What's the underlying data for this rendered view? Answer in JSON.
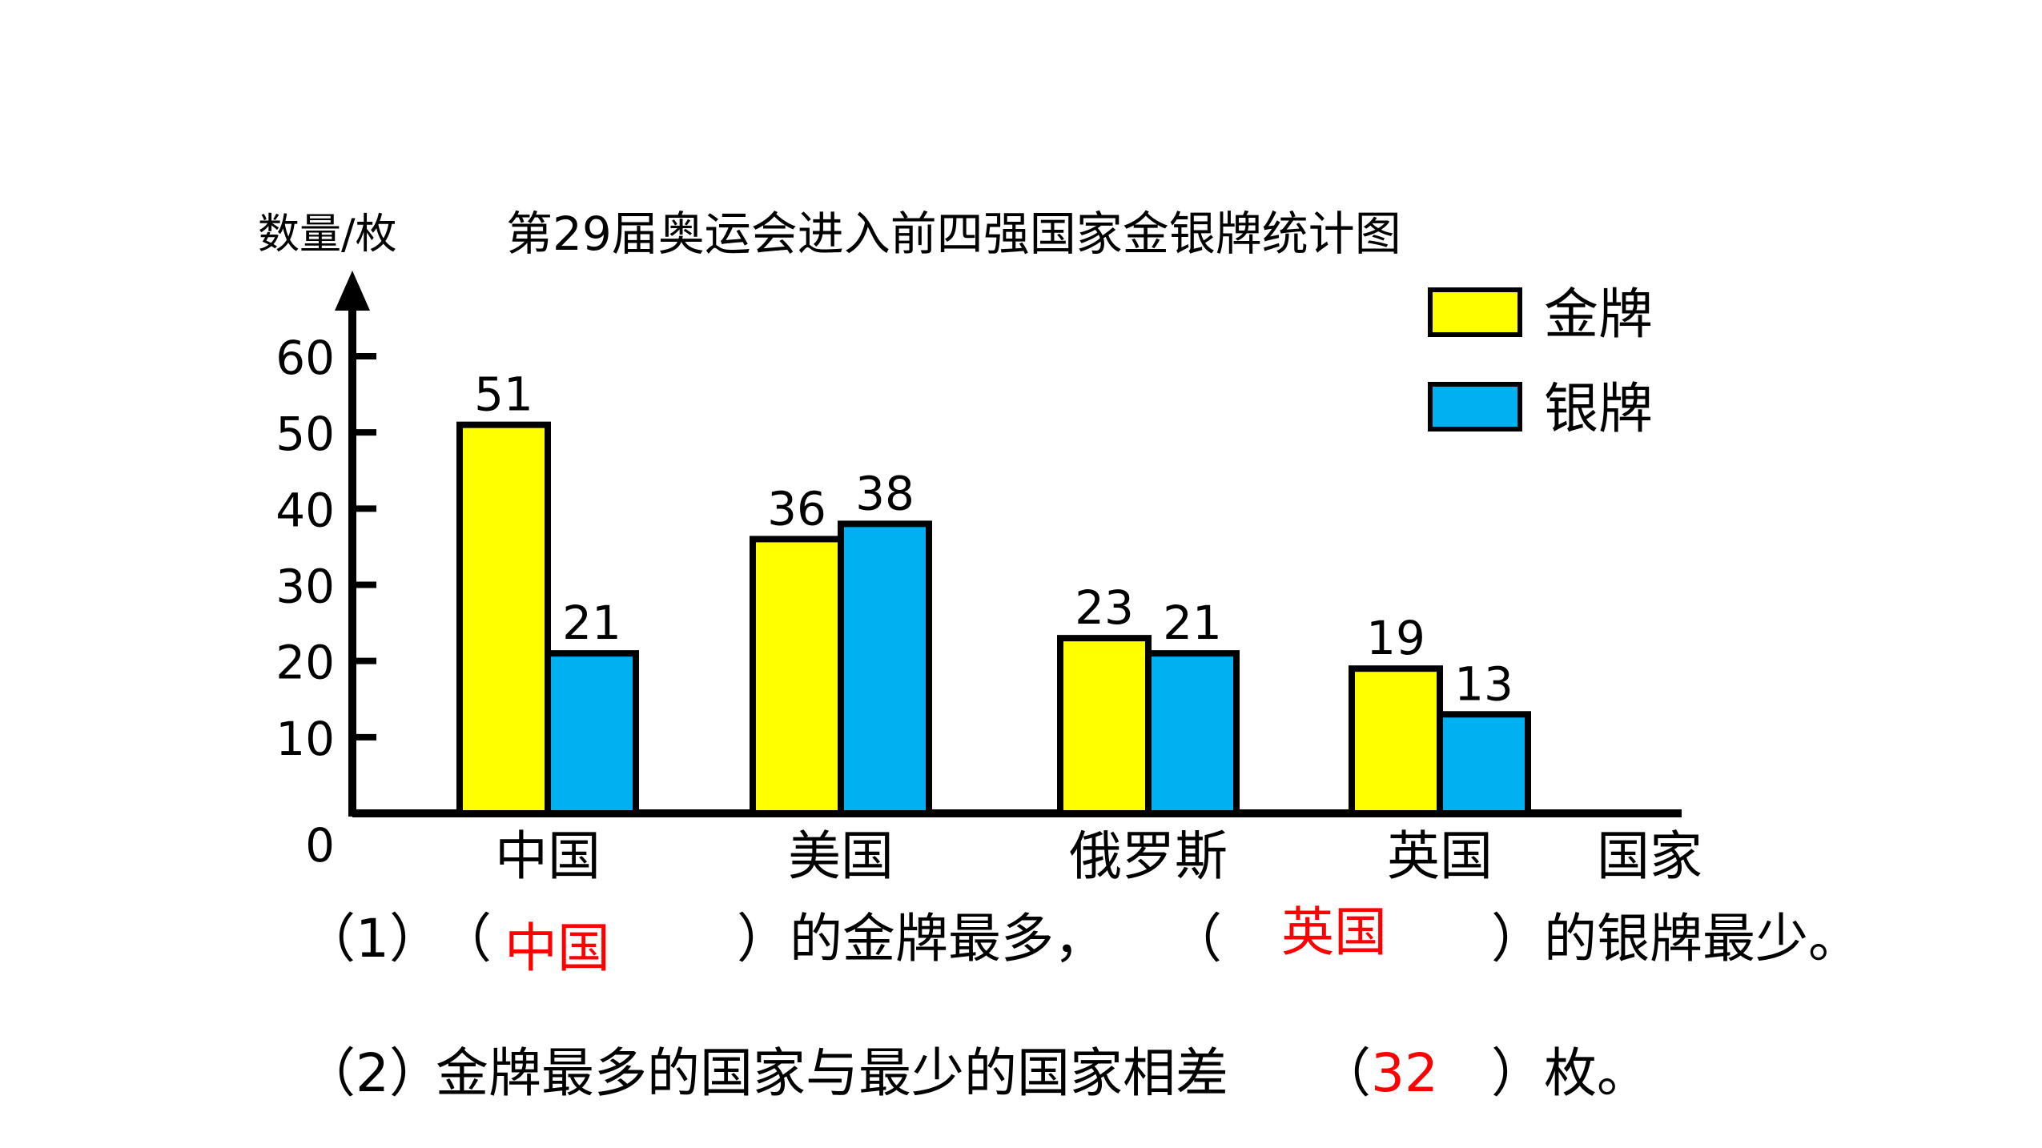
{
  "chart_data": {
    "type": "bar",
    "title": "第29届奥运会进入前四强国家金银牌统计图",
    "ylabel": "数量/枚",
    "xlabel": "国家",
    "ylim": [
      0,
      60
    ],
    "yticks": [
      0,
      10,
      20,
      30,
      40,
      50,
      60
    ],
    "categories": [
      "中国",
      "美国",
      "俄罗斯",
      "英国"
    ],
    "series": [
      {
        "name": "金牌",
        "color": "#ffff00",
        "values": [
          51,
          36,
          23,
          19
        ]
      },
      {
        "name": "银牌",
        "color": "#00b0f0",
        "values": [
          21,
          38,
          21,
          13
        ]
      }
    ],
    "legend_position": "top-right",
    "grid": false
  },
  "questions": {
    "q1": {
      "number": "（1）",
      "open1": "（",
      "answer1": "中国",
      "close1": "）的金牌最多，",
      "open2": "（",
      "answer2": "英国",
      "close2": "）的银牌最少。"
    },
    "q2": {
      "number": "（2）",
      "text": "金牌最多的国家与最少的国家相差",
      "open": "（",
      "answer": "32",
      "close": "）枚。"
    }
  },
  "colors": {
    "answer": "#ff0000",
    "axis": "#000000"
  }
}
